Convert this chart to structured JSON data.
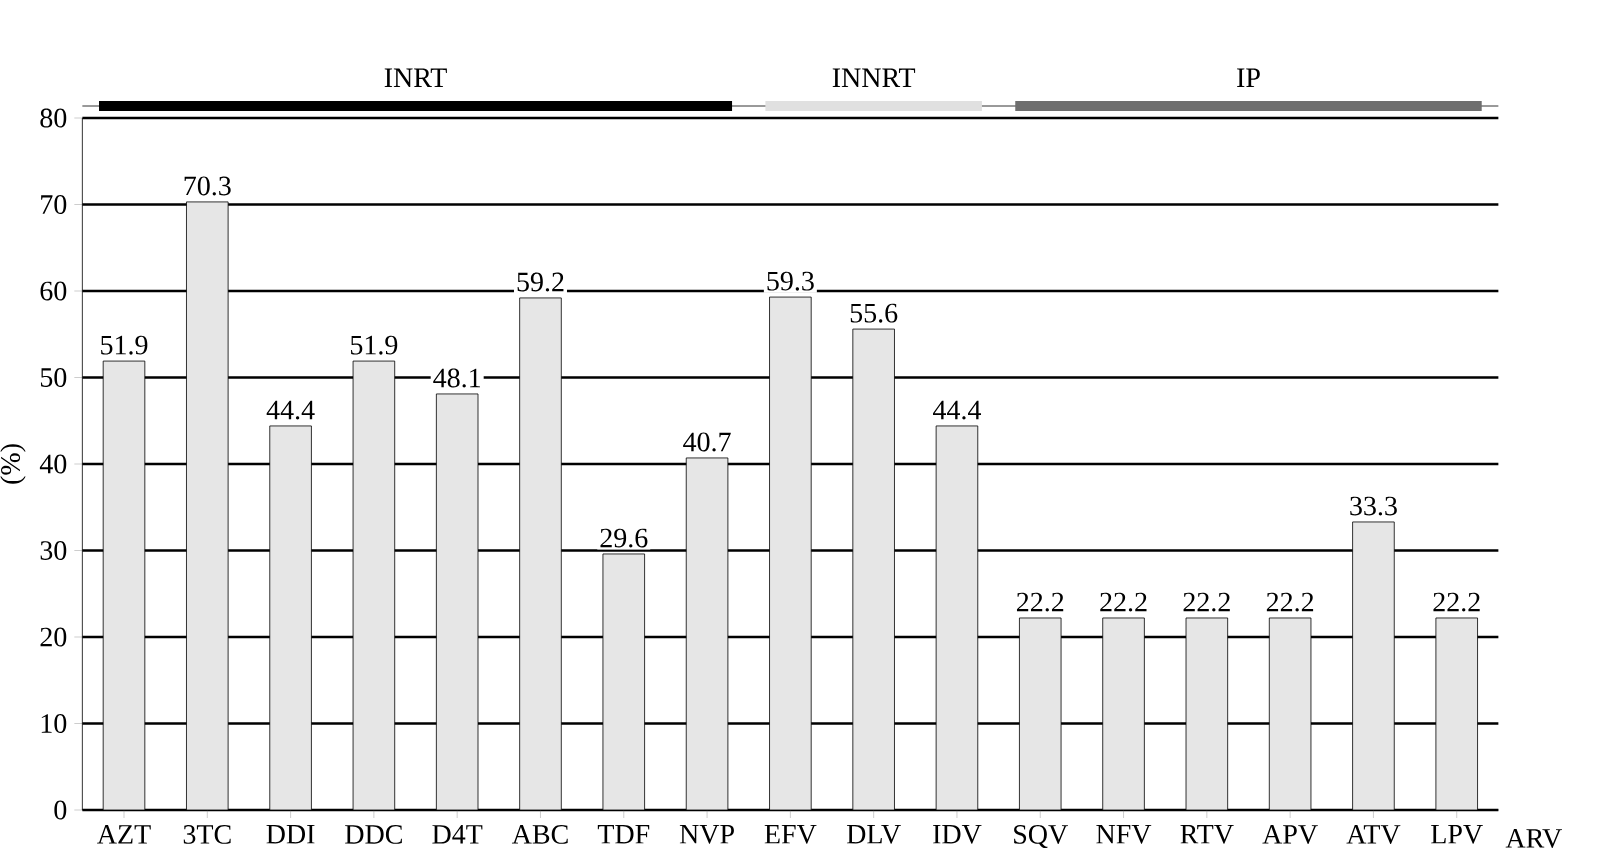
{
  "chart_data": {
    "type": "bar",
    "xlabel": "ARV",
    "ylabel": "(%)",
    "categories": [
      "AZT",
      "3TC",
      "DDI",
      "DDC",
      "D4T",
      "ABC",
      "TDF",
      "NVP",
      "EFV",
      "DLV",
      "IDV",
      "SQV",
      "NFV",
      "RTV",
      "APV",
      "ATV",
      "LPV"
    ],
    "values": [
      51.9,
      70.3,
      44.4,
      51.9,
      48.1,
      59.2,
      29.6,
      40.7,
      59.3,
      55.6,
      44.4,
      22.2,
      22.2,
      22.2,
      22.2,
      33.3,
      22.2
    ],
    "data_labels": true,
    "color": "#e6e6e6",
    "ylim": [
      0,
      80
    ],
    "yticks": [
      0,
      10,
      20,
      30,
      40,
      50,
      60,
      70,
      80
    ],
    "grid": "y",
    "annotations": [
      "INRT",
      "INNRT",
      "IP"
    ]
  }
}
